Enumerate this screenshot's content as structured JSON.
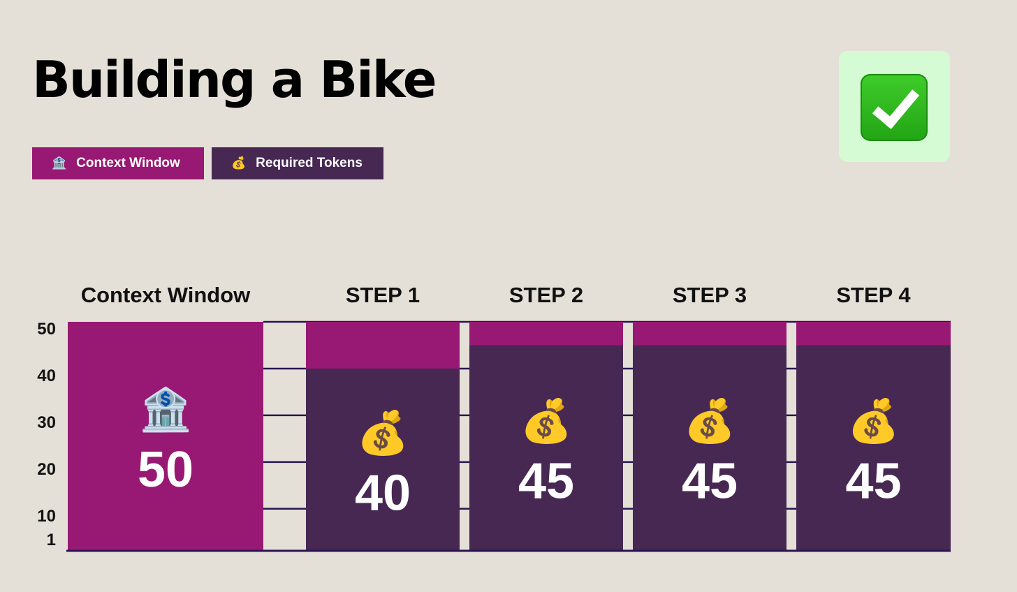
{
  "title": "Building a Bike",
  "status_icon": "check-mark-icon",
  "legend": [
    {
      "label": "Context Window",
      "icon": "bank-icon",
      "emoji": "🏦",
      "color": "#981973"
    },
    {
      "label": "Required Tokens",
      "icon": "money-bag-icon",
      "emoji": "💰",
      "color": "#472853"
    }
  ],
  "chart_data": {
    "type": "bar",
    "categories": [
      "Context Window",
      "STEP 1",
      "STEP 2",
      "STEP 3",
      "STEP 4"
    ],
    "series": [
      {
        "name": "Context Window",
        "values": [
          50,
          50,
          50,
          50,
          50
        ],
        "color": "#981973"
      },
      {
        "name": "Required Tokens",
        "values": [
          null,
          40,
          45,
          45,
          45
        ],
        "color": "#472853"
      }
    ],
    "bar_labels": [
      "50",
      "40",
      "45",
      "45",
      "45"
    ],
    "bar_icons": [
      "🏦",
      "💰",
      "💰",
      "💰",
      "💰"
    ],
    "y_ticks": [
      1,
      10,
      20,
      30,
      40,
      50
    ],
    "ylim": [
      1,
      50
    ],
    "grid": true,
    "legend_position": "top-left"
  }
}
